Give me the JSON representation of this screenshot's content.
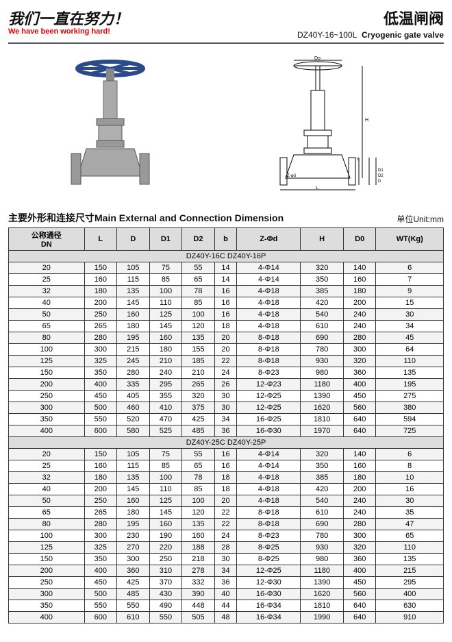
{
  "header": {
    "left_cn": "我们一直在努力！",
    "left_en": "We have been working hard!",
    "right_cn": "低温闸阀",
    "right_model": "DZ40Y-16~100L",
    "right_en": "Cryogenic gate valve"
  },
  "table_header": {
    "title": "主要外形和连接尺寸Main  External and Connection Dimension",
    "unit": "单位Unit:mm"
  },
  "columns": [
    "公称通径\nDN",
    "L",
    "D",
    "D1",
    "D2",
    "b",
    "Z-Φd",
    "H",
    "D0",
    "WT(Kg)"
  ],
  "sections": [
    {
      "label": "DZ40Y-16C    DZ40Y-16P",
      "rows": [
        [
          "20",
          "150",
          "105",
          "75",
          "55",
          "14",
          "4-Φ14",
          "320",
          "140",
          "6"
        ],
        [
          "25",
          "160",
          "115",
          "85",
          "65",
          "14",
          "4-Φ14",
          "350",
          "160",
          "7"
        ],
        [
          "32",
          "180",
          "135",
          "100",
          "78",
          "16",
          "4-Φ18",
          "385",
          "180",
          "9"
        ],
        [
          "40",
          "200",
          "145",
          "110",
          "85",
          "16",
          "4-Φ18",
          "420",
          "200",
          "15"
        ],
        [
          "50",
          "250",
          "160",
          "125",
          "100",
          "16",
          "4-Φ18",
          "540",
          "240",
          "30"
        ],
        [
          "65",
          "265",
          "180",
          "145",
          "120",
          "18",
          "4-Φ18",
          "610",
          "240",
          "34"
        ],
        [
          "80",
          "280",
          "195",
          "160",
          "135",
          "20",
          "8-Φ18",
          "690",
          "280",
          "45"
        ],
        [
          "100",
          "300",
          "215",
          "180",
          "155",
          "20",
          "8-Φ18",
          "780",
          "300",
          "64"
        ],
        [
          "125",
          "325",
          "245",
          "210",
          "185",
          "22",
          "8-Φ18",
          "930",
          "320",
          "110"
        ],
        [
          "150",
          "350",
          "280",
          "240",
          "210",
          "24",
          "8-Φ23",
          "980",
          "360",
          "135"
        ],
        [
          "200",
          "400",
          "335",
          "295",
          "265",
          "26",
          "12-Φ23",
          "1180",
          "400",
          "195"
        ],
        [
          "250",
          "450",
          "405",
          "355",
          "320",
          "30",
          "12-Φ25",
          "1390",
          "450",
          "275"
        ],
        [
          "300",
          "500",
          "460",
          "410",
          "375",
          "30",
          "12-Φ25",
          "1620",
          "560",
          "380"
        ],
        [
          "350",
          "550",
          "520",
          "470",
          "425",
          "34",
          "16-Φ25",
          "1810",
          "640",
          "594"
        ],
        [
          "400",
          "600",
          "580",
          "525",
          "485",
          "36",
          "16-Φ30",
          "1970",
          "640",
          "725"
        ]
      ]
    },
    {
      "label": "DZ40Y-25C    DZ40Y-25P",
      "rows": [
        [
          "20",
          "150",
          "105",
          "75",
          "55",
          "16",
          "4-Φ14",
          "320",
          "140",
          "6"
        ],
        [
          "25",
          "160",
          "115",
          "85",
          "65",
          "16",
          "4-Φ14",
          "350",
          "160",
          "8"
        ],
        [
          "32",
          "180",
          "135",
          "100",
          "78",
          "18",
          "4-Φ18",
          "385",
          "180",
          "10"
        ],
        [
          "40",
          "200",
          "145",
          "110",
          "85",
          "18",
          "4-Φ18",
          "420",
          "200",
          "16"
        ],
        [
          "50",
          "250",
          "160",
          "125",
          "100",
          "20",
          "4-Φ18",
          "540",
          "240",
          "30"
        ],
        [
          "65",
          "265",
          "180",
          "145",
          "120",
          "22",
          "8-Φ18",
          "610",
          "240",
          "35"
        ],
        [
          "80",
          "280",
          "195",
          "160",
          "135",
          "22",
          "8-Φ18",
          "690",
          "280",
          "47"
        ],
        [
          "100",
          "300",
          "230",
          "190",
          "160",
          "24",
          "8-Φ23",
          "780",
          "300",
          "65"
        ],
        [
          "125",
          "325",
          "270",
          "220",
          "188",
          "28",
          "8-Φ25",
          "930",
          "320",
          "110"
        ],
        [
          "150",
          "350",
          "300",
          "250",
          "218",
          "30",
          "8-Φ25",
          "980",
          "360",
          "135"
        ],
        [
          "200",
          "400",
          "360",
          "310",
          "278",
          "34",
          "12-Φ25",
          "1180",
          "400",
          "215"
        ],
        [
          "250",
          "450",
          "425",
          "370",
          "332",
          "36",
          "12-Φ30",
          "1390",
          "450",
          "295"
        ],
        [
          "300",
          "500",
          "485",
          "430",
          "390",
          "40",
          "16-Φ30",
          "1620",
          "560",
          "400"
        ],
        [
          "350",
          "550",
          "550",
          "490",
          "448",
          "44",
          "16-Φ34",
          "1810",
          "640",
          "630"
        ],
        [
          "400",
          "600",
          "610",
          "550",
          "505",
          "48",
          "16-Φ34",
          "1990",
          "640",
          "910"
        ]
      ]
    }
  ]
}
